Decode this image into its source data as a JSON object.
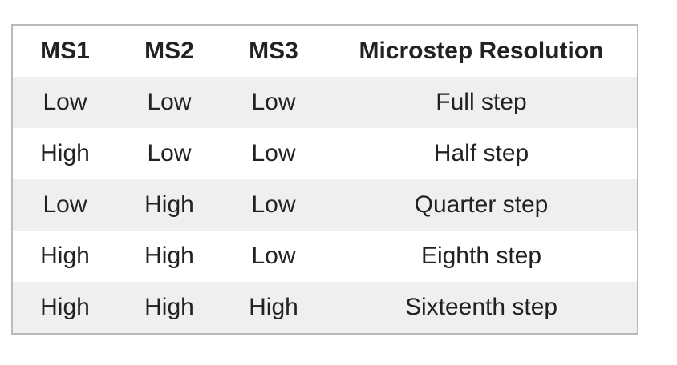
{
  "table": {
    "headers": [
      "MS1",
      "MS2",
      "MS3",
      "Microstep Resolution"
    ],
    "rows": [
      [
        "Low",
        "Low",
        "Low",
        "Full step"
      ],
      [
        "High",
        "Low",
        "Low",
        "Half step"
      ],
      [
        "Low",
        "High",
        "Low",
        "Quarter step"
      ],
      [
        "High",
        "High",
        "Low",
        "Eighth step"
      ],
      [
        "High",
        "High",
        "High",
        "Sixteenth step"
      ]
    ]
  }
}
